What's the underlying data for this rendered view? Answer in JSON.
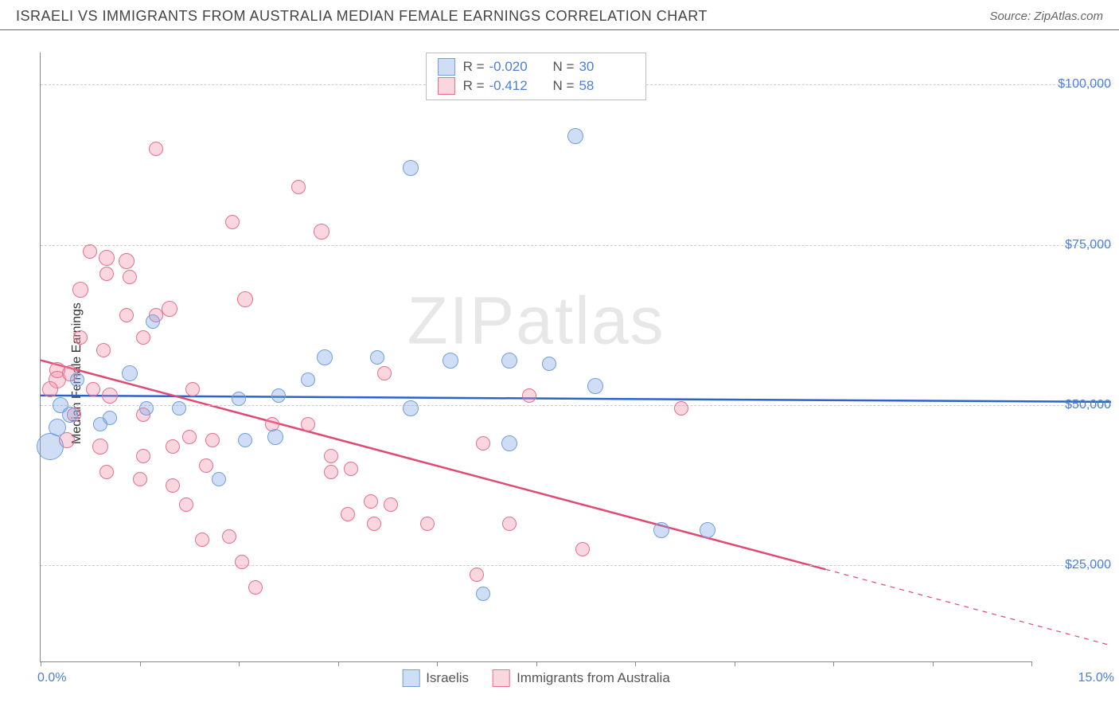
{
  "header": {
    "title": "ISRAELI VS IMMIGRANTS FROM AUSTRALIA MEDIAN FEMALE EARNINGS CORRELATION CHART",
    "source": "Source: ZipAtlas.com"
  },
  "watermark": "ZIPatlas",
  "chart": {
    "type": "scatter",
    "ylabel": "Median Female Earnings",
    "xlim": [
      0,
      15
    ],
    "ylim": [
      10000,
      105000
    ],
    "x_tick_positions": [
      0,
      1.5,
      3,
      4.5,
      6,
      7.5,
      9,
      10.5,
      12,
      13.5,
      15
    ],
    "x_label_min": "0.0%",
    "x_label_max": "15.0%",
    "y_gridlines": [
      25000,
      50000,
      75000,
      100000
    ],
    "y_tick_labels": [
      "$25,000",
      "$50,000",
      "$75,000",
      "$100,000"
    ],
    "grid_color": "#cccccc",
    "axis_color": "#888888",
    "background_color": "#ffffff",
    "label_fontsize": 16,
    "tick_color": "#4a7fd8",
    "marker_radius_default": 9,
    "series": [
      {
        "name": "Israelis",
        "fill": "rgba(120,160,225,0.35)",
        "stroke": "#6f9fe0",
        "trend_color": "#2b63c9",
        "trend_width": 2.5,
        "trend": {
          "x1": 0,
          "y1": 51500,
          "x2": 15,
          "y2": 50500,
          "solid_until_x": 15
        },
        "R": "-0.020",
        "N": "30",
        "points": [
          {
            "x": 8.1,
            "y": 92000,
            "r": 10
          },
          {
            "x": 5.6,
            "y": 87000,
            "r": 10
          },
          {
            "x": 1.7,
            "y": 63000,
            "r": 9
          },
          {
            "x": 3.6,
            "y": 51500,
            "r": 9
          },
          {
            "x": 4.3,
            "y": 57500,
            "r": 10
          },
          {
            "x": 5.1,
            "y": 57500,
            "r": 9
          },
          {
            "x": 6.2,
            "y": 57000,
            "r": 10
          },
          {
            "x": 7.1,
            "y": 57000,
            "r": 10
          },
          {
            "x": 8.4,
            "y": 53000,
            "r": 10
          },
          {
            "x": 5.6,
            "y": 49500,
            "r": 10
          },
          {
            "x": 7.1,
            "y": 44000,
            "r": 10
          },
          {
            "x": 0.25,
            "y": 46500,
            "r": 11
          },
          {
            "x": 0.15,
            "y": 43500,
            "r": 17
          },
          {
            "x": 0.3,
            "y": 50000,
            "r": 10
          },
          {
            "x": 0.55,
            "y": 54000,
            "r": 9
          },
          {
            "x": 1.35,
            "y": 55000,
            "r": 10
          },
          {
            "x": 1.6,
            "y": 49500,
            "r": 9
          },
          {
            "x": 2.1,
            "y": 49500,
            "r": 9
          },
          {
            "x": 3.1,
            "y": 44500,
            "r": 9
          },
          {
            "x": 3.55,
            "y": 45000,
            "r": 10
          },
          {
            "x": 2.7,
            "y": 38500,
            "r": 9
          },
          {
            "x": 4.05,
            "y": 54000,
            "r": 9
          },
          {
            "x": 9.4,
            "y": 30500,
            "r": 10
          },
          {
            "x": 10.1,
            "y": 30500,
            "r": 10
          },
          {
            "x": 6.7,
            "y": 20500,
            "r": 9
          },
          {
            "x": 0.9,
            "y": 47000,
            "r": 9
          },
          {
            "x": 0.45,
            "y": 48500,
            "r": 10
          },
          {
            "x": 3.0,
            "y": 51000,
            "r": 9
          },
          {
            "x": 7.7,
            "y": 56500,
            "r": 9
          },
          {
            "x": 1.05,
            "y": 48000,
            "r": 9
          }
        ]
      },
      {
        "name": "Immigrants from Australia",
        "fill": "rgba(240,140,165,0.35)",
        "stroke": "#e66f8d",
        "trend_color": "#e04a72",
        "trend_width": 2.5,
        "trend": {
          "x1": 0,
          "y1": 57000,
          "x2": 15,
          "y2": 12500,
          "solid_until_x": 11
        },
        "R": "-0.412",
        "N": "58",
        "points": [
          {
            "x": 1.75,
            "y": 90000,
            "r": 9
          },
          {
            "x": 3.9,
            "y": 84000,
            "r": 9
          },
          {
            "x": 4.25,
            "y": 77000,
            "r": 10
          },
          {
            "x": 2.9,
            "y": 78500,
            "r": 9
          },
          {
            "x": 0.75,
            "y": 74000,
            "r": 9
          },
          {
            "x": 1.0,
            "y": 73000,
            "r": 10
          },
          {
            "x": 1.3,
            "y": 72500,
            "r": 10
          },
          {
            "x": 1.0,
            "y": 70500,
            "r": 9
          },
          {
            "x": 1.35,
            "y": 70000,
            "r": 9
          },
          {
            "x": 0.6,
            "y": 68000,
            "r": 10
          },
          {
            "x": 1.95,
            "y": 65000,
            "r": 10
          },
          {
            "x": 1.75,
            "y": 64000,
            "r": 9
          },
          {
            "x": 1.3,
            "y": 64000,
            "r": 9
          },
          {
            "x": 3.1,
            "y": 66500,
            "r": 10
          },
          {
            "x": 1.55,
            "y": 60500,
            "r": 9
          },
          {
            "x": 0.25,
            "y": 55500,
            "r": 10
          },
          {
            "x": 0.25,
            "y": 54000,
            "r": 11
          },
          {
            "x": 0.15,
            "y": 52500,
            "r": 10
          },
          {
            "x": 0.45,
            "y": 55000,
            "r": 10
          },
          {
            "x": 0.8,
            "y": 52500,
            "r": 9
          },
          {
            "x": 1.05,
            "y": 51500,
            "r": 10
          },
          {
            "x": 5.2,
            "y": 55000,
            "r": 9
          },
          {
            "x": 9.7,
            "y": 49500,
            "r": 9
          },
          {
            "x": 7.4,
            "y": 51500,
            "r": 9
          },
          {
            "x": 0.9,
            "y": 43500,
            "r": 10
          },
          {
            "x": 1.55,
            "y": 42000,
            "r": 9
          },
          {
            "x": 2.0,
            "y": 43500,
            "r": 9
          },
          {
            "x": 2.25,
            "y": 45000,
            "r": 9
          },
          {
            "x": 2.6,
            "y": 44500,
            "r": 9
          },
          {
            "x": 2.5,
            "y": 40500,
            "r": 9
          },
          {
            "x": 0.5,
            "y": 48500,
            "r": 9
          },
          {
            "x": 0.4,
            "y": 44500,
            "r": 10
          },
          {
            "x": 2.0,
            "y": 37500,
            "r": 9
          },
          {
            "x": 2.2,
            "y": 34500,
            "r": 9
          },
          {
            "x": 3.5,
            "y": 47000,
            "r": 9
          },
          {
            "x": 4.05,
            "y": 47000,
            "r": 9
          },
          {
            "x": 4.4,
            "y": 42000,
            "r": 9
          },
          {
            "x": 4.4,
            "y": 39500,
            "r": 9
          },
          {
            "x": 4.7,
            "y": 40000,
            "r": 9
          },
          {
            "x": 5.0,
            "y": 35000,
            "r": 9
          },
          {
            "x": 5.3,
            "y": 34500,
            "r": 9
          },
          {
            "x": 4.65,
            "y": 33000,
            "r": 9
          },
          {
            "x": 5.05,
            "y": 31500,
            "r": 9
          },
          {
            "x": 5.85,
            "y": 31500,
            "r": 9
          },
          {
            "x": 6.7,
            "y": 44000,
            "r": 9
          },
          {
            "x": 7.1,
            "y": 31500,
            "r": 9
          },
          {
            "x": 6.6,
            "y": 23500,
            "r": 9
          },
          {
            "x": 8.2,
            "y": 27500,
            "r": 9
          },
          {
            "x": 2.85,
            "y": 29500,
            "r": 9
          },
          {
            "x": 3.05,
            "y": 25500,
            "r": 9
          },
          {
            "x": 3.25,
            "y": 21500,
            "r": 9
          },
          {
            "x": 2.45,
            "y": 29000,
            "r": 9
          },
          {
            "x": 1.5,
            "y": 38500,
            "r": 9
          },
          {
            "x": 1.0,
            "y": 39500,
            "r": 9
          },
          {
            "x": 1.55,
            "y": 48500,
            "r": 9
          },
          {
            "x": 0.95,
            "y": 58500,
            "r": 9
          },
          {
            "x": 2.3,
            "y": 52500,
            "r": 9
          },
          {
            "x": 0.6,
            "y": 60500,
            "r": 9
          }
        ]
      }
    ],
    "legend": {
      "items": [
        "Israelis",
        "Immigrants from Australia"
      ]
    }
  }
}
